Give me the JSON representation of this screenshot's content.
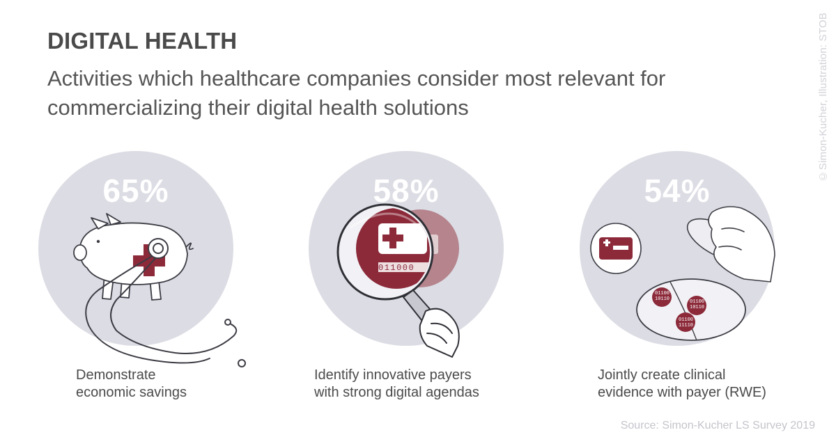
{
  "header": {
    "title": "DIGITAL HEALTH",
    "subtitle": "Activities which healthcare companies consider most relevant for commercializing their digital health solutions"
  },
  "credit": "©Simon-Kucher, Illustration: STOB",
  "source": "Source: Simon-Kucher LS Survey 2019",
  "colors": {
    "accent": "#8c2a3a",
    "disc": "#dcdce4",
    "text": "#4a4a4a"
  },
  "chart_data": {
    "type": "bar",
    "unit": "%",
    "categories": [
      "Demonstrate economic savings",
      "Identify innovative payers with strong digital agendas",
      "Jointly create clinical evidence with payer (RWE)"
    ],
    "values": [
      65,
      58,
      54
    ]
  },
  "items": [
    {
      "value_label": "65%",
      "label_line1": "Demonstrate",
      "label_line2": "economic savings",
      "icon": "piggy-bank-stethoscope"
    },
    {
      "value_label": "58%",
      "label_line1": "Identify innovative payers",
      "label_line2": "with strong digital agendas",
      "icon": "magnifier-health-card",
      "card_code": "011000"
    },
    {
      "value_label": "54%",
      "label_line1": "Jointly create clinical",
      "label_line2": "evidence with payer (RWE)",
      "icon": "petri-dish-data",
      "data_bits": [
        "01100",
        "10110",
        "11110"
      ]
    }
  ]
}
